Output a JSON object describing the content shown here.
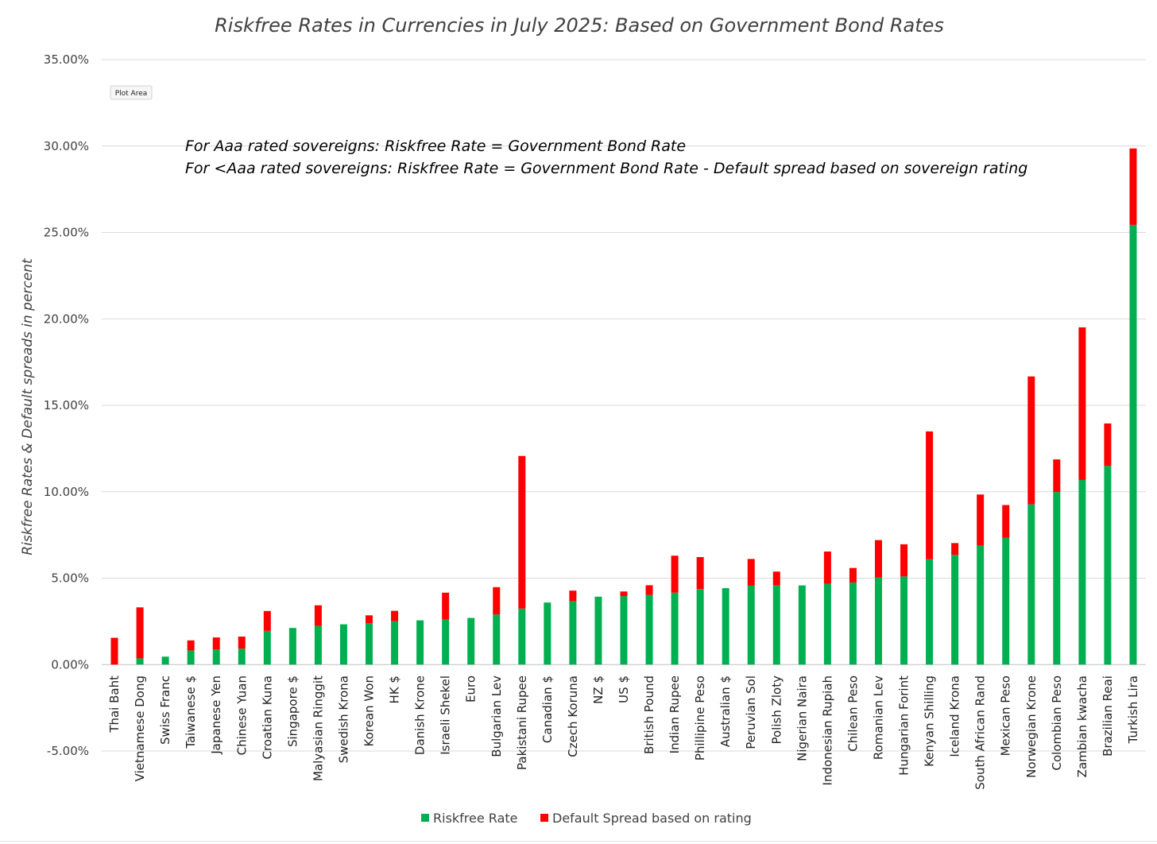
{
  "chart_data": {
    "type": "bar",
    "stacked": true,
    "title": "Riskfree Rates in Currencies in July 2025: Based on Government  Bond Rates",
    "ylabel": "Riskfree Rates & Default spreads in percent",
    "xlabel": "",
    "ylim": [
      -5,
      35
    ],
    "yticks": [
      -5,
      0,
      5,
      10,
      15,
      20,
      25,
      30,
      35
    ],
    "ytick_labels": [
      "-5.00%",
      "0.00%",
      "5.00%",
      "10.00%",
      "15.00%",
      "20.00%",
      "25.00%",
      "30.00%",
      "35.00%"
    ],
    "grid": true,
    "legend_position": "bottom",
    "plot_area_tag": "Plot Area",
    "annotations": [
      "For Aaa rated sovereigns: Riskfree Rate = Government Bond Rate",
      "For <Aaa rated sovereigns: Riskfree Rate = Government Bond Rate - Default spread based on sovereign rating"
    ],
    "categories": [
      "Thai Baht",
      "Vietnamese Dong",
      "Swiss Franc",
      "Taiwanese $",
      "Japanese Yen",
      "Chinese Yuan",
      "Croatian Kuna",
      "Singapore $",
      "Malyasian Ringgit",
      "Swedish Krona",
      "Korean Won",
      "HK $",
      "Danish Krone",
      "Israeli Shekel",
      "Euro",
      "Bulgarian Lev",
      "Pakistani Rupee",
      "Canadian $",
      "Czech Koruna",
      "NZ $",
      "US $",
      "British Pound",
      "Indian Rupee",
      "Phillipine Peso",
      "Australian $",
      "Peruvian Sol",
      "Polish Zloty",
      "Nigerian Naira",
      "Indonesian Rupiah",
      "Chilean Peso",
      "Romanian Lev",
      "Hungarian Forint",
      "Kenyan Shilling",
      "Iceland Krona",
      "South African Rand",
      "Mexican Peso",
      "Norwegian Krone",
      "Colombian Peso",
      "Zambian kwacha",
      "Brazilian Reai",
      "Turkish Lira"
    ],
    "series": [
      {
        "name": "Riskfree Rate",
        "color": "#00b050",
        "values": [
          0.0,
          0.36,
          0.46,
          0.82,
          0.87,
          0.92,
          1.95,
          2.12,
          2.23,
          2.33,
          2.4,
          2.51,
          2.56,
          2.6,
          2.7,
          2.9,
          3.24,
          3.59,
          3.67,
          3.93,
          3.96,
          4.03,
          4.16,
          4.37,
          4.42,
          4.56,
          4.58,
          4.58,
          4.67,
          4.75,
          5.03,
          5.1,
          6.09,
          6.35,
          6.88,
          7.33,
          9.27,
          9.98,
          10.68,
          11.49,
          25.44
        ]
      },
      {
        "name": "Default Spread based on rating",
        "color": "#ff0000",
        "values": [
          1.55,
          2.95,
          0.0,
          0.58,
          0.7,
          0.7,
          1.15,
          0.0,
          1.2,
          0.0,
          0.45,
          0.6,
          0.0,
          1.56,
          0.0,
          1.58,
          8.83,
          0.0,
          0.61,
          0.0,
          0.27,
          0.56,
          2.14,
          1.85,
          0.0,
          1.55,
          0.8,
          0.0,
          1.87,
          0.84,
          2.17,
          1.86,
          7.4,
          0.68,
          2.96,
          1.9,
          7.4,
          1.89,
          8.83,
          2.46,
          4.42
        ]
      }
    ]
  }
}
